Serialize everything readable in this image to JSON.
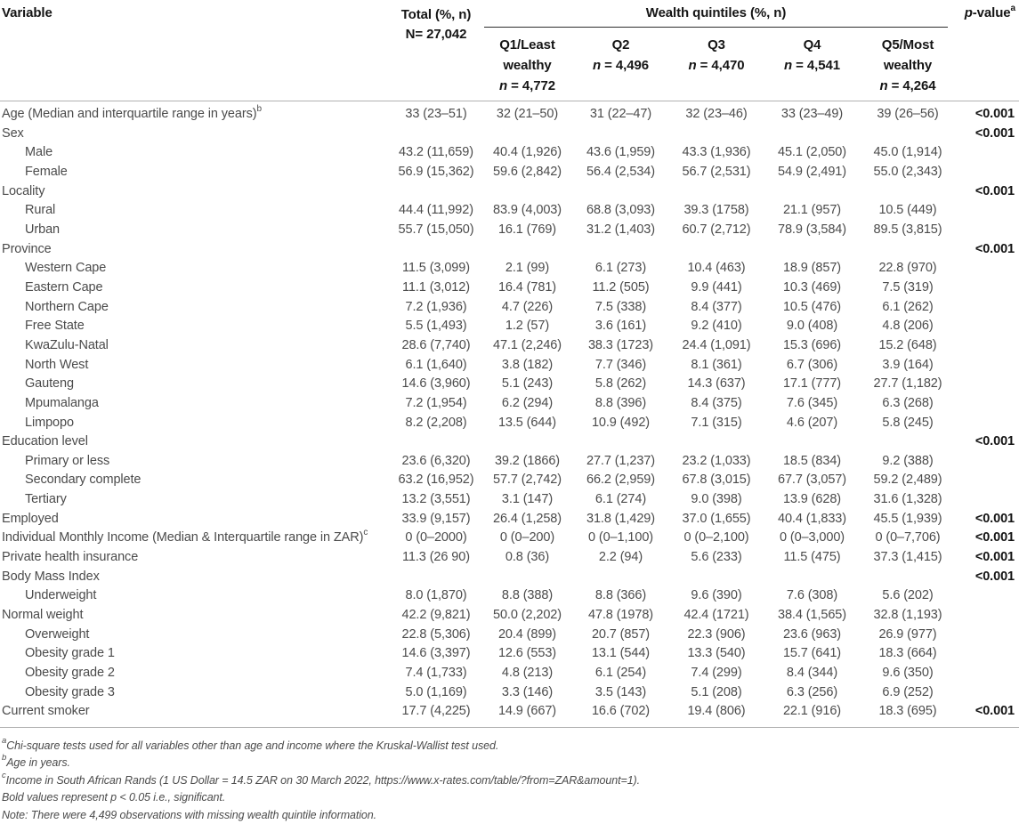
{
  "table": {
    "header": {
      "variable": "Variable",
      "total_line1": "Total (%, n)",
      "total_line2": "N= 27,042",
      "group": "Wealth quintiles (%, n)",
      "pvalue_italic": "p",
      "pvalue_rest": "-value",
      "pvalue_sup": "a",
      "quintiles": [
        {
          "title": "Q1/Least wealthy",
          "n": "4,772"
        },
        {
          "title": "Q2",
          "n": "4,496"
        },
        {
          "title": "Q3",
          "n": "4,470"
        },
        {
          "title": "Q4",
          "n": "4,541"
        },
        {
          "title": "Q5/Most wealthy",
          "n": "4,264"
        }
      ]
    },
    "rows": [
      {
        "label": "Age (Median and interquartile range in years)",
        "sup": "b",
        "indent": false,
        "total": "33 (23–51)",
        "q": [
          "32 (21–50)",
          "31 (22–47)",
          "32 (23–46)",
          "33 (23–49)",
          "39 (26–56)"
        ],
        "p": "<0.001"
      },
      {
        "label": "Sex",
        "sup": "",
        "indent": false,
        "total": "",
        "q": [
          "",
          "",
          "",
          "",
          ""
        ],
        "p": "<0.001"
      },
      {
        "label": "Male",
        "sup": "",
        "indent": true,
        "total": "43.2 (11,659)",
        "q": [
          "40.4 (1,926)",
          "43.6 (1,959)",
          "43.3 (1,936)",
          "45.1 (2,050)",
          "45.0 (1,914)"
        ],
        "p": ""
      },
      {
        "label": "Female",
        "sup": "",
        "indent": true,
        "total": "56.9 (15,362)",
        "q": [
          "59.6 (2,842)",
          "56.4 (2,534)",
          "56.7 (2,531)",
          "54.9 (2,491)",
          "55.0 (2,343)"
        ],
        "p": ""
      },
      {
        "label": "Locality",
        "sup": "",
        "indent": false,
        "total": "",
        "q": [
          "",
          "",
          "",
          "",
          ""
        ],
        "p": "<0.001"
      },
      {
        "label": "Rural",
        "sup": "",
        "indent": true,
        "total": "44.4 (11,992)",
        "q": [
          "83.9 (4,003)",
          "68.8 (3,093)",
          "39.3 (1758)",
          "21.1 (957)",
          "10.5 (449)"
        ],
        "p": ""
      },
      {
        "label": "Urban",
        "sup": "",
        "indent": true,
        "total": "55.7 (15,050)",
        "q": [
          "16.1 (769)",
          "31.2 (1,403)",
          "60.7 (2,712)",
          "78.9 (3,584)",
          "89.5 (3,815)"
        ],
        "p": ""
      },
      {
        "label": "Province",
        "sup": "",
        "indent": false,
        "total": "",
        "q": [
          "",
          "",
          "",
          "",
          ""
        ],
        "p": "<0.001"
      },
      {
        "label": "Western Cape",
        "sup": "",
        "indent": true,
        "total": "11.5 (3,099)",
        "q": [
          "2.1 (99)",
          "6.1 (273)",
          "10.4 (463)",
          "18.9 (857)",
          "22.8 (970)"
        ],
        "p": ""
      },
      {
        "label": "Eastern Cape",
        "sup": "",
        "indent": true,
        "total": "11.1 (3,012)",
        "q": [
          "16.4 (781)",
          "11.2 (505)",
          "9.9 (441)",
          "10.3 (469)",
          "7.5 (319)"
        ],
        "p": ""
      },
      {
        "label": "Northern Cape",
        "sup": "",
        "indent": true,
        "total": "7.2 (1,936)",
        "q": [
          "4.7 (226)",
          "7.5 (338)",
          "8.4 (377)",
          "10.5 (476)",
          "6.1 (262)"
        ],
        "p": ""
      },
      {
        "label": "Free State",
        "sup": "",
        "indent": true,
        "total": "5.5 (1,493)",
        "q": [
          "1.2 (57)",
          "3.6 (161)",
          "9.2 (410)",
          "9.0 (408)",
          "4.8 (206)"
        ],
        "p": ""
      },
      {
        "label": "KwaZulu-Natal",
        "sup": "",
        "indent": true,
        "total": "28.6 (7,740)",
        "q": [
          "47.1 (2,246)",
          "38.3 (1723)",
          "24.4 (1,091)",
          "15.3 (696)",
          "15.2 (648)"
        ],
        "p": ""
      },
      {
        "label": "North West",
        "sup": "",
        "indent": true,
        "total": "6.1 (1,640)",
        "q": [
          "3.8 (182)",
          "7.7 (346)",
          "8.1 (361)",
          "6.7 (306)",
          "3.9 (164)"
        ],
        "p": ""
      },
      {
        "label": "Gauteng",
        "sup": "",
        "indent": true,
        "total": "14.6 (3,960)",
        "q": [
          "5.1 (243)",
          "5.8 (262)",
          "14.3 (637)",
          "17.1 (777)",
          "27.7 (1,182)"
        ],
        "p": ""
      },
      {
        "label": "Mpumalanga",
        "sup": "",
        "indent": true,
        "total": "7.2 (1,954)",
        "q": [
          "6.2 (294)",
          "8.8 (396)",
          "8.4 (375)",
          "7.6 (345)",
          "6.3 (268)"
        ],
        "p": ""
      },
      {
        "label": "Limpopo",
        "sup": "",
        "indent": true,
        "total": "8.2 (2,208)",
        "q": [
          "13.5 (644)",
          "10.9 (492)",
          "7.1 (315)",
          "4.6 (207)",
          "5.8 (245)"
        ],
        "p": ""
      },
      {
        "label": "Education level",
        "sup": "",
        "indent": false,
        "total": "",
        "q": [
          "",
          "",
          "",
          "",
          ""
        ],
        "p": "<0.001"
      },
      {
        "label": "Primary or less",
        "sup": "",
        "indent": true,
        "total": "23.6 (6,320)",
        "q": [
          "39.2 (1866)",
          "27.7 (1,237)",
          "23.2 (1,033)",
          "18.5 (834)",
          "9.2 (388)"
        ],
        "p": ""
      },
      {
        "label": "Secondary complete",
        "sup": "",
        "indent": true,
        "total": "63.2 (16,952)",
        "q": [
          "57.7 (2,742)",
          "66.2 (2,959)",
          "67.8 (3,015)",
          "67.7 (3,057)",
          "59.2 (2,489)"
        ],
        "p": ""
      },
      {
        "label": "Tertiary",
        "sup": "",
        "indent": true,
        "total": "13.2 (3,551)",
        "q": [
          "3.1 (147)",
          "6.1 (274)",
          "9.0 (398)",
          "13.9 (628)",
          "31.6 (1,328)"
        ],
        "p": ""
      },
      {
        "label": "Employed",
        "sup": "",
        "indent": false,
        "total": "33.9 (9,157)",
        "q": [
          "26.4 (1,258)",
          "31.8 (1,429)",
          "37.0 (1,655)",
          "40.4 (1,833)",
          "45.5 (1,939)"
        ],
        "p": "<0.001"
      },
      {
        "label": "Individual Monthly Income (Median & Interquartile range in ZAR)",
        "sup": "c",
        "indent": false,
        "total": "0 (0–2000)",
        "q": [
          "0 (0–200)",
          "0 (0–1,100)",
          "0 (0–2,100)",
          "0 (0–3,000)",
          "0 (0–7,706)"
        ],
        "p": "<0.001"
      },
      {
        "label": "Private health insurance",
        "sup": "",
        "indent": false,
        "total": "11.3 (26 90)",
        "q": [
          "0.8 (36)",
          "2.2 (94)",
          "5.6 (233)",
          "11.5 (475)",
          "37.3 (1,415)"
        ],
        "p": "<0.001"
      },
      {
        "label": "Body Mass Index",
        "sup": "",
        "indent": false,
        "total": "",
        "q": [
          "",
          "",
          "",
          "",
          ""
        ],
        "p": "<0.001"
      },
      {
        "label": "Underweight",
        "sup": "",
        "indent": true,
        "total": "8.0 (1,870)",
        "q": [
          "8.8 (388)",
          "8.8 (366)",
          "9.6 (390)",
          "7.6 (308)",
          "5.6 (202)"
        ],
        "p": ""
      },
      {
        "label": "Normal weight",
        "sup": "",
        "indent": false,
        "total": "42.2 (9,821)",
        "q": [
          "50.0 (2,202)",
          "47.8 (1978)",
          "42.4 (1721)",
          "38.4 (1,565)",
          "32.8 (1,193)"
        ],
        "p": ""
      },
      {
        "label": "Overweight",
        "sup": "",
        "indent": true,
        "total": "22.8 (5,306)",
        "q": [
          "20.4 (899)",
          "20.7 (857)",
          "22.3 (906)",
          "23.6 (963)",
          "26.9 (977)"
        ],
        "p": ""
      },
      {
        "label": "Obesity grade 1",
        "sup": "",
        "indent": true,
        "total": "14.6 (3,397)",
        "q": [
          "12.6 (553)",
          "13.1 (544)",
          "13.3 (540)",
          "15.7 (641)",
          "18.3 (664)"
        ],
        "p": ""
      },
      {
        "label": "Obesity grade 2",
        "sup": "",
        "indent": true,
        "total": "7.4 (1,733)",
        "q": [
          "4.8 (213)",
          "6.1 (254)",
          "7.4 (299)",
          "8.4 (344)",
          "9.6 (350)"
        ],
        "p": ""
      },
      {
        "label": "Obesity grade 3",
        "sup": "",
        "indent": true,
        "total": "5.0 (1,169)",
        "q": [
          "3.3 (146)",
          "3.5 (143)",
          "5.1 (208)",
          "6.3 (256)",
          "6.9 (252)"
        ],
        "p": ""
      },
      {
        "label": "Current smoker",
        "sup": "",
        "indent": false,
        "total": "17.7 (4,225)",
        "q": [
          "14.9 (667)",
          "16.6 (702)",
          "19.4 (806)",
          "22.1 (916)",
          "18.3 (695)"
        ],
        "p": "<0.001"
      }
    ]
  },
  "footnotes": [
    {
      "sup": "a",
      "text": "Chi-square tests used for all variables other than age and income where the Kruskal-Wallist test used."
    },
    {
      "sup": "b",
      "text": "Age in years."
    },
    {
      "sup": "c",
      "text": "Income in South African Rands (1 US Dollar = 14.5 ZAR on 30 March 2022, https://www.x-rates.com/table/?from=ZAR&amount=1)."
    },
    {
      "sup": "",
      "text": "Bold values represent p < 0.05 i.e., significant."
    },
    {
      "sup": "",
      "text": "Note: There were 4,499 observations with missing wealth quintile information."
    }
  ]
}
